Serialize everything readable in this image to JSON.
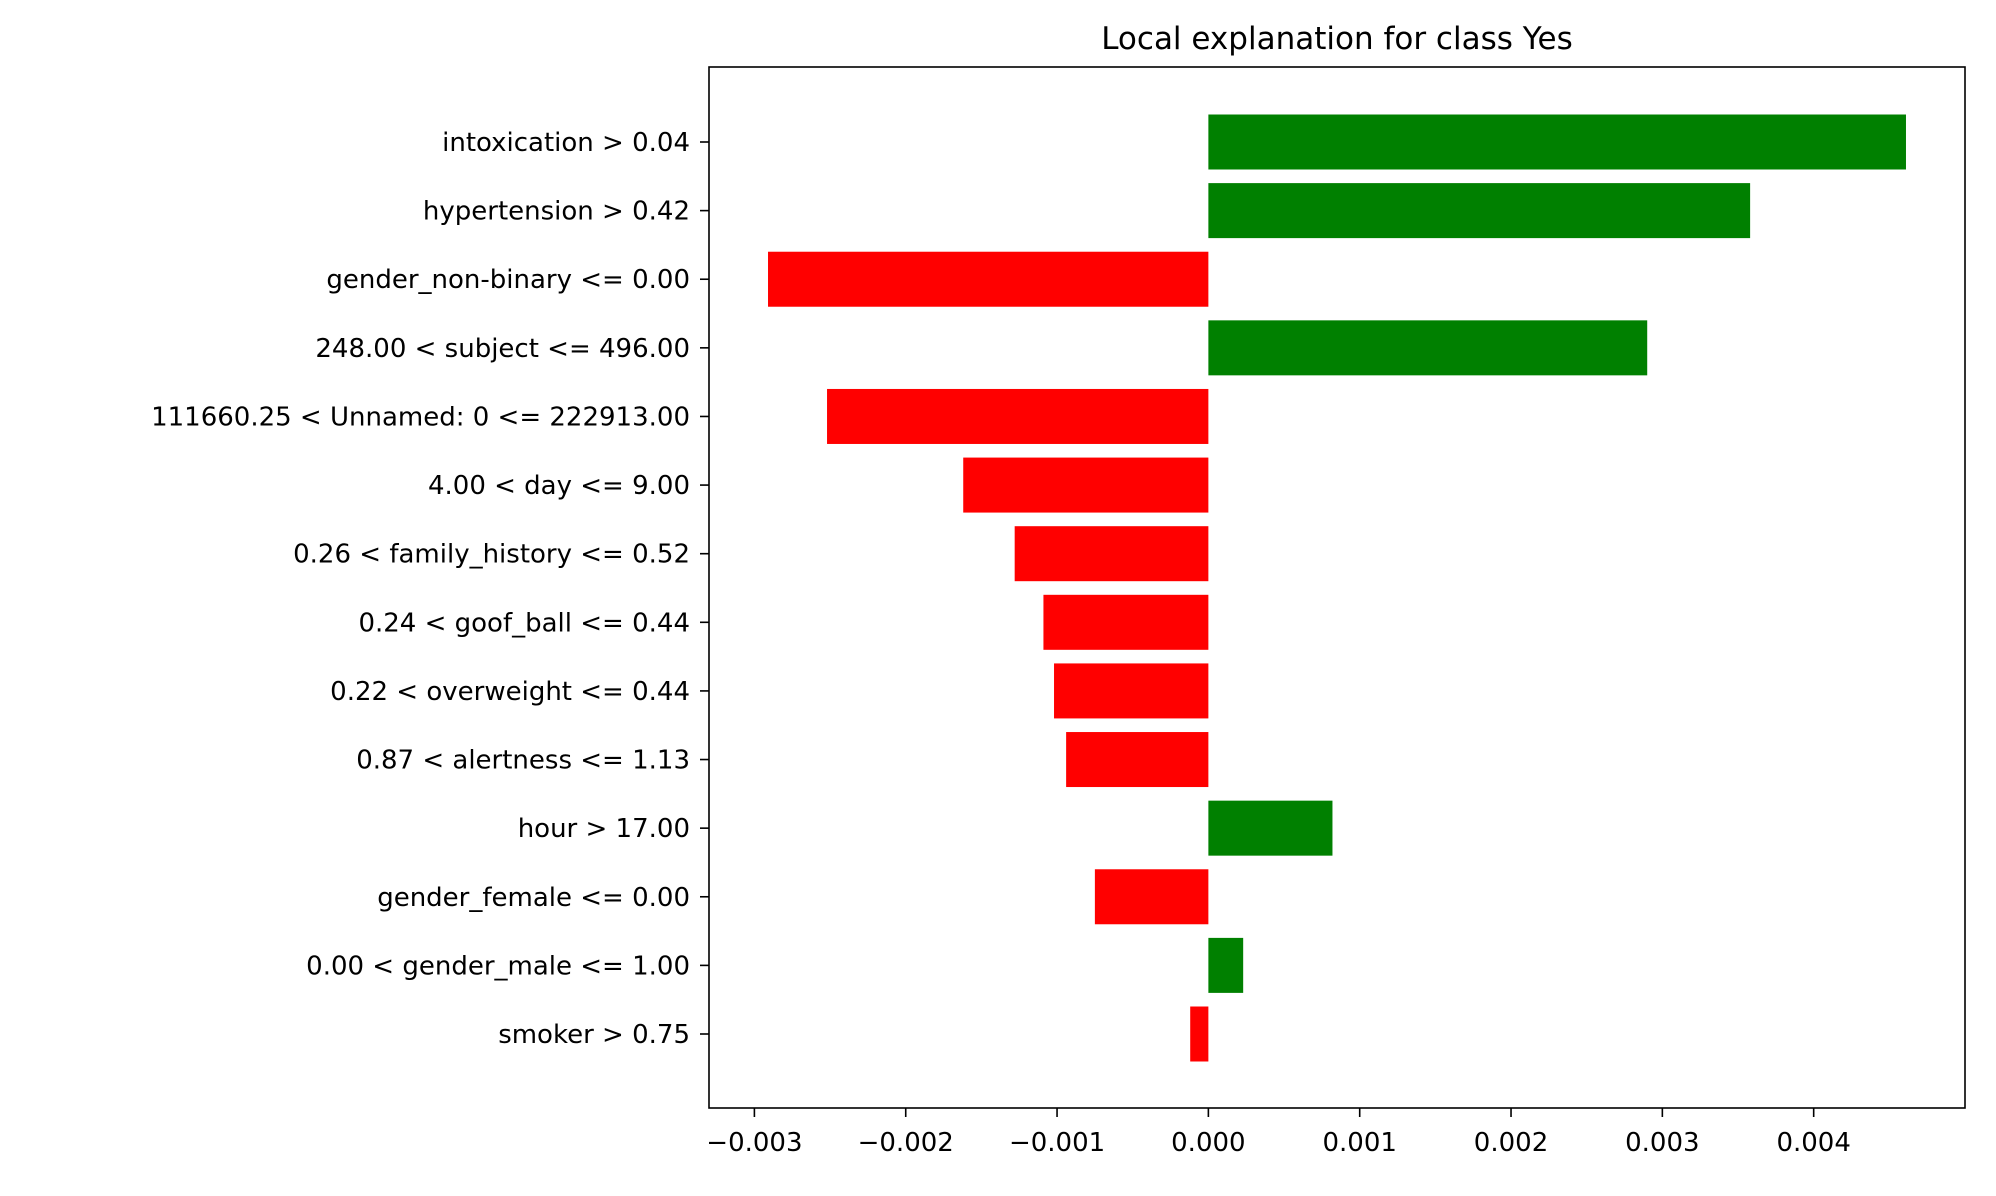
{
  "chart_data": {
    "type": "bar",
    "orientation": "horizontal",
    "title": "Local explanation for class Yes",
    "xlabel": "",
    "ylabel": "",
    "categories": [
      "intoxication > 0.04",
      "hypertension > 0.42",
      "gender_non-binary <= 0.00",
      "248.00 < subject <= 496.00",
      "111660.25 < Unnamed: 0 <= 222913.00",
      "4.00 < day <= 9.00",
      "0.26 < family_history <= 0.52",
      "0.24 < goof_ball <= 0.44",
      "0.22 < overweight <= 0.44",
      "0.87 < alertness <= 1.13",
      "hour > 17.00",
      "gender_female <= 0.00",
      "0.00 < gender_male <= 1.00",
      "smoker > 0.75"
    ],
    "values": [
      0.00461,
      0.00358,
      -0.00291,
      0.0029,
      -0.00252,
      -0.00162,
      -0.00128,
      -0.00109,
      -0.00102,
      -0.00094,
      0.00082,
      -0.00075,
      0.00023,
      -0.00012
    ],
    "xlim": [
      -0.0033,
      0.005
    ],
    "xticks": [
      -0.003,
      -0.002,
      -0.001,
      0.0,
      0.001,
      0.002,
      0.003,
      0.004
    ],
    "xtick_labels": [
      "−0.003",
      "−0.002",
      "−0.001",
      "0.000",
      "0.001",
      "0.002",
      "0.003",
      "0.004"
    ],
    "colors": {
      "positive": "#008000",
      "negative": "#ff0000"
    },
    "grid": false,
    "legend": "none"
  }
}
